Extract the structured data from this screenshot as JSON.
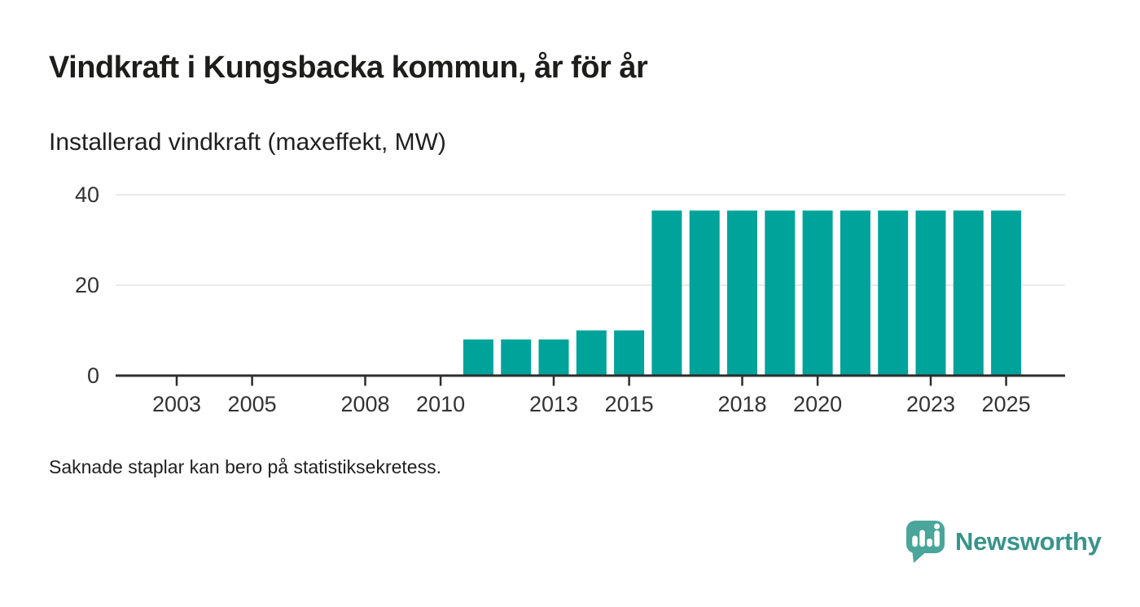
{
  "header": {
    "title": "Vindkraft i Kungsbacka kommun, år för år",
    "subtitle": "Installerad vindkraft (maxeffekt, MW)"
  },
  "footnote": {
    "text": "Saknade staplar kan bero på statistiksekretess."
  },
  "branding": {
    "name": "Newsworthy",
    "wordmark_color": "#38948a",
    "icon": "newsworthy-speech-bubble-bar-chart-icon",
    "icon_color": "#4aa59a"
  },
  "chart_data": {
    "type": "bar",
    "title": "Vindkraft i Kungsbacka kommun, år för år",
    "subtitle": "Installerad vindkraft (maxeffekt, MW)",
    "unit": "MW",
    "xlabel": "",
    "ylabel": "",
    "series": [
      {
        "year": 2011,
        "value": 8
      },
      {
        "year": 2012,
        "value": 8
      },
      {
        "year": 2013,
        "value": 8
      },
      {
        "year": 2014,
        "value": 10
      },
      {
        "year": 2015,
        "value": 10
      },
      {
        "year": 2016,
        "value": 36.5
      },
      {
        "year": 2017,
        "value": 36.5
      },
      {
        "year": 2018,
        "value": 36.5
      },
      {
        "year": 2019,
        "value": 36.5
      },
      {
        "year": 2020,
        "value": 36.5
      },
      {
        "year": 2021,
        "value": 36.5
      },
      {
        "year": 2022,
        "value": 36.5
      },
      {
        "year": 2023,
        "value": 36.5
      },
      {
        "year": 2024,
        "value": 36.5
      },
      {
        "year": 2025,
        "value": 36.5
      }
    ],
    "years_without_bars": [
      2001,
      2002,
      2003,
      2004,
      2005,
      2006,
      2007,
      2008,
      2009,
      2010
    ],
    "x_ticks": [
      2003,
      2005,
      2008,
      2010,
      2013,
      2015,
      2018,
      2020,
      2023,
      2025
    ],
    "y_ticks": [
      0,
      20,
      40
    ],
    "xlim": [
      2001.4,
      2026.5
    ],
    "ylim": [
      0,
      44
    ],
    "grid": true,
    "legend": false,
    "bar_color": "#00a39a",
    "grid_color": "#e4e4e4",
    "axis_color": "#2d2d2d",
    "tick_label_color": "#333333"
  }
}
